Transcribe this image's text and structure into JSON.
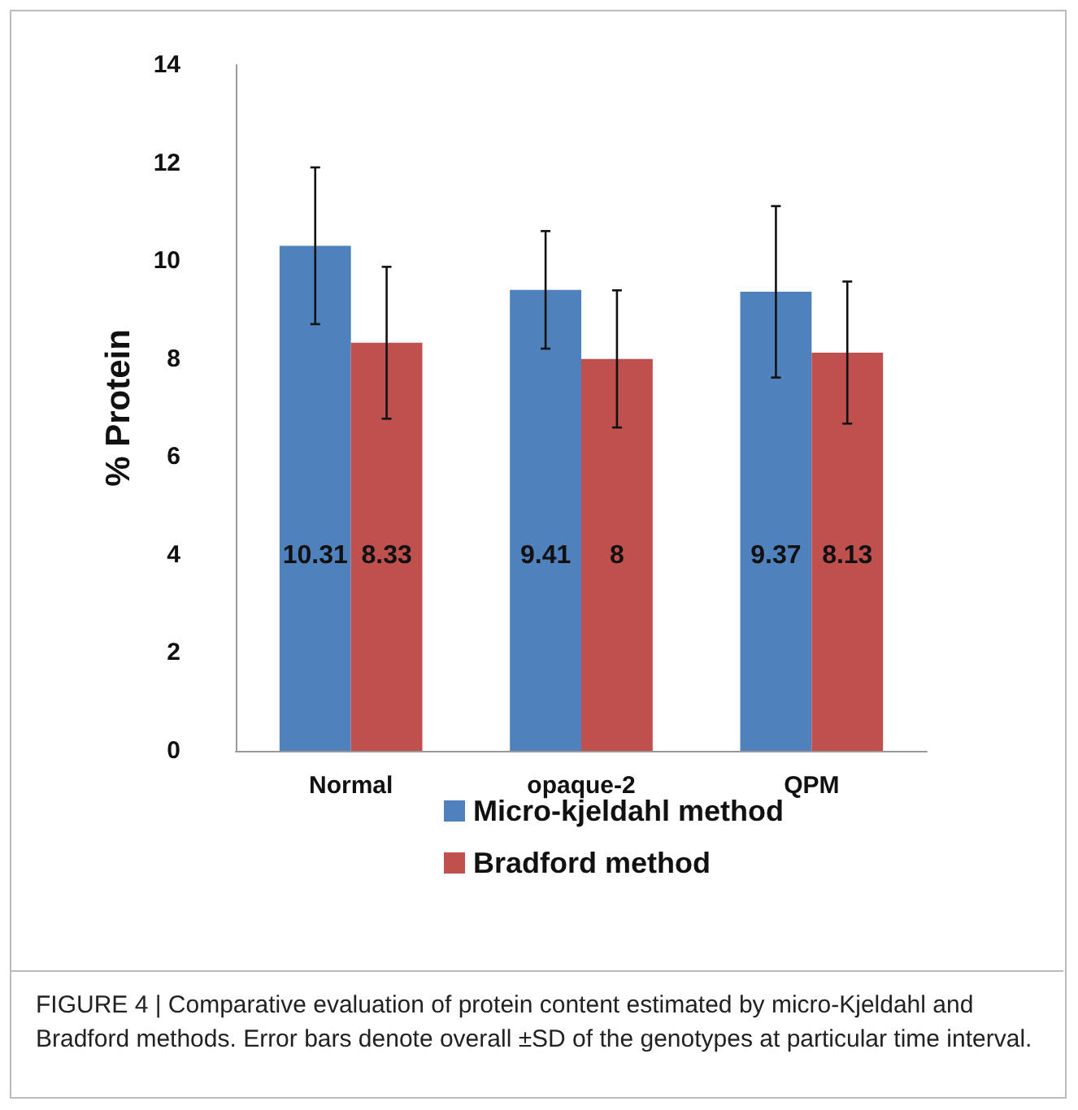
{
  "chart_data": {
    "type": "bar",
    "ylabel": "% Protein",
    "categories": [
      "Normal",
      "opaque-2",
      "QPM"
    ],
    "series": [
      {
        "name": "Micro-kjeldahl method",
        "color": "#4f81bd",
        "values": [
          10.31,
          9.41,
          9.37
        ],
        "errors": [
          1.6,
          1.2,
          1.75
        ]
      },
      {
        "name": "Bradford method",
        "color": "#c0504d",
        "values": [
          8.33,
          8,
          8.13
        ],
        "errors": [
          1.55,
          1.4,
          1.45
        ]
      }
    ],
    "ylim": [
      0,
      14
    ],
    "yticks": [
      0,
      2,
      4,
      6,
      8,
      10,
      12,
      14
    ],
    "grid": false,
    "legend": "bottom",
    "data_labels": true,
    "annotations": [
      "FIGURE 4 | Comparative evaluation of protein content estimated by micro-Kjeldahl and Bradford methods. Error bars denote overall ±SD of the genotypes at particular time interval."
    ]
  }
}
